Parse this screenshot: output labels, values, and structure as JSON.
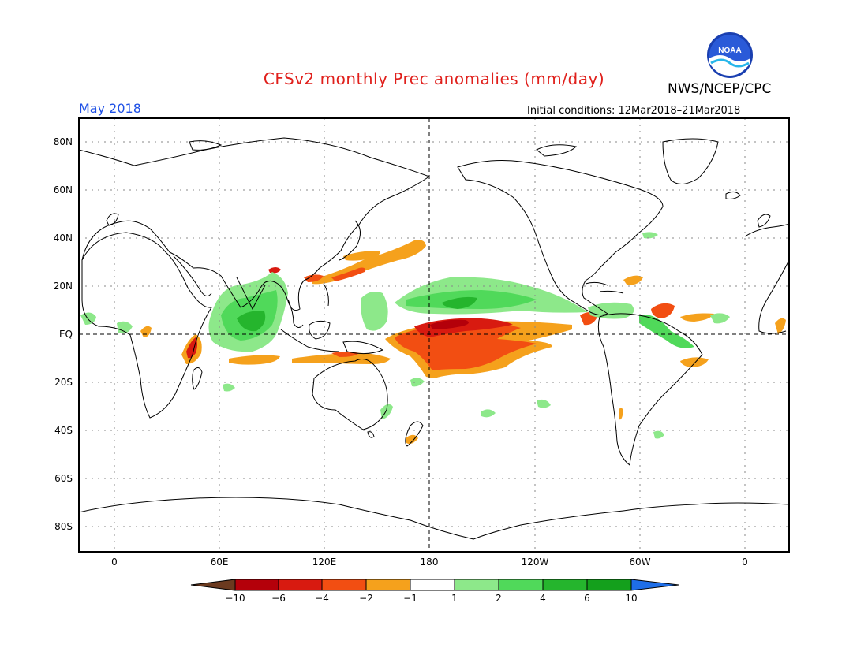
{
  "title": "CFSv2 monthly Prec anomalies (mm/day)",
  "agency": "NWS/NCEP/CPC",
  "logo_text": "NOAA",
  "month": "May 2018",
  "initial_conditions": "Initial conditions: 12Mar2018–21Mar2018",
  "lat_labels": [
    "80N",
    "60N",
    "40N",
    "20N",
    "EQ",
    "20S",
    "40S",
    "60S",
    "80S"
  ],
  "lon_labels": [
    "0",
    "60E",
    "120E",
    "180",
    "120W",
    "60W",
    "0"
  ],
  "colorbar": {
    "ticks": [
      "−10",
      "−6",
      "−4",
      "−2",
      "−1",
      "1",
      "2",
      "4",
      "6",
      "10"
    ],
    "colors": [
      "#6b3a1f",
      "#b4000a",
      "#d81a10",
      "#f24e12",
      "#f5a11c",
      "#ffffff",
      "#8de88a",
      "#50d95a",
      "#25b52d",
      "#14a01c",
      "#1e6ee8"
    ]
  },
  "anomaly_colors": {
    "dry_light": "#f5a11c",
    "dry_mid": "#f24e12",
    "dry_strong": "#d81a10",
    "dry_extreme": "#b4000a",
    "wet_light": "#8de88a",
    "wet_mid": "#50d95a",
    "wet_strong": "#25b52d"
  }
}
